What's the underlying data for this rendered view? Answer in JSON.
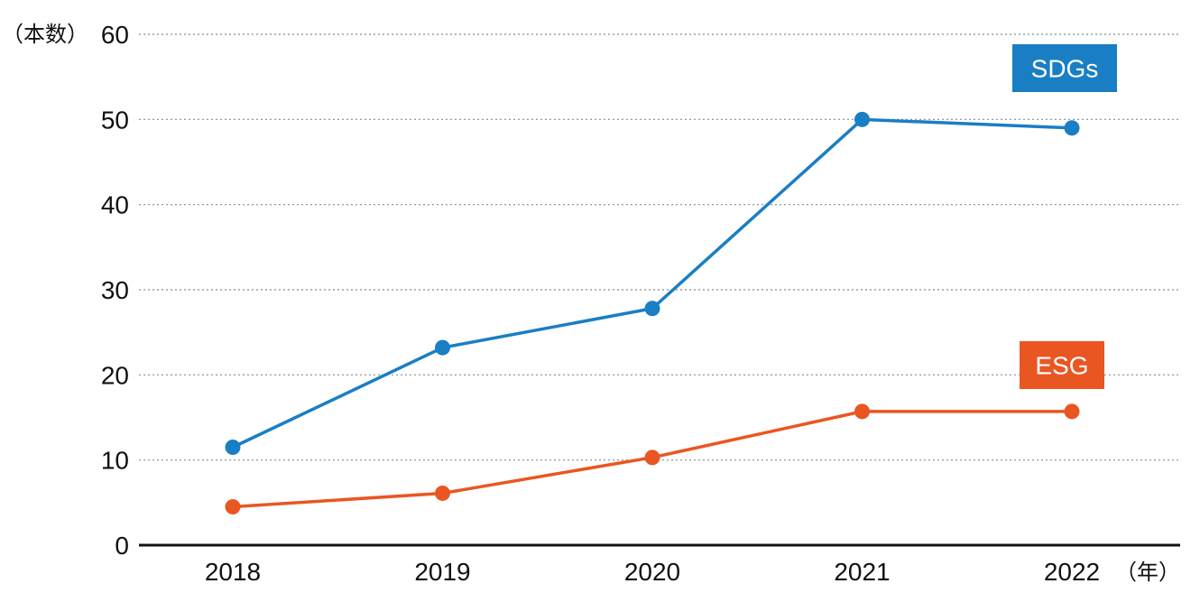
{
  "chart_data": {
    "type": "line",
    "x": [
      "2018",
      "2019",
      "2020",
      "2021",
      "2022"
    ],
    "ylabel": "（本数）",
    "xlabel": "（年）",
    "ylim": [
      0,
      60
    ],
    "yticks": [
      "0",
      "10",
      "20",
      "30",
      "40",
      "50",
      "60"
    ],
    "grid": "horizontal-dotted",
    "series": [
      {
        "name": "SDGs",
        "values": [
          11.5,
          23.2,
          27.8,
          50,
          49
        ],
        "color": "#1a7ec4"
      },
      {
        "name": "ESG",
        "values": [
          4.5,
          6.1,
          10.3,
          15.7,
          15.7
        ],
        "color": "#ea5622"
      }
    ]
  }
}
